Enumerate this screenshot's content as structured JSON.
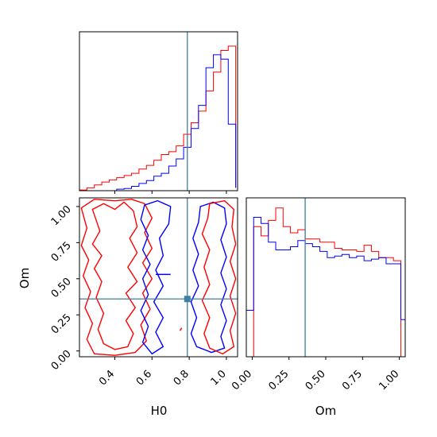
{
  "chart_data": {
    "type": "corner",
    "parameters": [
      "H0",
      "Om"
    ],
    "colors": {
      "red": "#ff0000",
      "blue": "#0000ff",
      "truth": "#3f7fa0"
    },
    "truth": {
      "H0": 0.79,
      "Om": 0.36
    },
    "panels": {
      "h0_hist": {
        "type": "step-histogram",
        "xlim": [
          0.21,
          1.06
        ],
        "x_ticks": [
          0.4,
          0.6,
          0.8,
          1.0
        ],
        "bin_edges": [
          0.21,
          0.25,
          0.29,
          0.33,
          0.37,
          0.41,
          0.45,
          0.49,
          0.53,
          0.57,
          0.61,
          0.65,
          0.69,
          0.73,
          0.77,
          0.81,
          0.85,
          0.89,
          0.93,
          0.97,
          1.01,
          1.05
        ],
        "series": [
          {
            "color": "red",
            "counts": [
              0.005,
              0.02,
              0.04,
              0.06,
              0.075,
              0.09,
              0.105,
              0.12,
              0.15,
              0.175,
              0.21,
              0.25,
              0.27,
              0.31,
              0.39,
              0.47,
              0.55,
              0.69,
              0.82,
              0.97,
              1.0,
              0.02
            ]
          },
          {
            "color": "blue",
            "counts": [
              0.0,
              0.0,
              0.0,
              0.0,
              0.0,
              0.01,
              0.015,
              0.03,
              0.05,
              0.07,
              0.1,
              0.12,
              0.17,
              0.22,
              0.3,
              0.43,
              0.59,
              0.85,
              0.94,
              0.91,
              0.46,
              0.02
            ]
          }
        ]
      },
      "contour": {
        "type": "contour",
        "xlabel": "H0",
        "ylabel": "Om",
        "xlim": [
          0.21,
          1.06
        ],
        "ylim": [
          -0.04,
          1.06
        ],
        "x_ticks": [
          0.4,
          0.6,
          0.8,
          1.0
        ],
        "y_ticks": [
          0.0,
          0.25,
          0.5,
          0.75,
          1.0
        ],
        "contours": [
          {
            "color": "red",
            "points": [
              [
                0.28,
                0.98
              ],
              [
                0.34,
                1.02
              ],
              [
                0.4,
                0.98
              ],
              [
                0.45,
                1.03
              ],
              [
                0.5,
                0.97
              ],
              [
                0.52,
                0.86
              ],
              [
                0.48,
                0.78
              ],
              [
                0.52,
                0.68
              ],
              [
                0.47,
                0.58
              ],
              [
                0.52,
                0.48
              ],
              [
                0.46,
                0.4
              ],
              [
                0.51,
                0.3
              ],
              [
                0.46,
                0.21
              ],
              [
                0.5,
                0.12
              ],
              [
                0.47,
                0.03
              ],
              [
                0.4,
                0.01
              ],
              [
                0.34,
                0.05
              ],
              [
                0.31,
                0.15
              ],
              [
                0.34,
                0.26
              ],
              [
                0.3,
                0.37
              ],
              [
                0.33,
                0.48
              ],
              [
                0.29,
                0.57
              ],
              [
                0.33,
                0.66
              ],
              [
                0.28,
                0.74
              ],
              [
                0.32,
                0.83
              ]
            ]
          },
          {
            "color": "red",
            "points": [
              [
                0.22,
                0.99
              ],
              [
                0.29,
                1.05
              ],
              [
                0.4,
                1.04
              ],
              [
                0.49,
                1.05
              ],
              [
                0.56,
                1.02
              ],
              [
                0.6,
                0.92
              ],
              [
                0.56,
                0.82
              ],
              [
                0.6,
                0.71
              ],
              [
                0.55,
                0.61
              ],
              [
                0.6,
                0.5
              ],
              [
                0.55,
                0.4
              ],
              [
                0.59,
                0.29
              ],
              [
                0.54,
                0.18
              ],
              [
                0.57,
                0.07
              ],
              [
                0.51,
                -0.01
              ],
              [
                0.4,
                -0.03
              ],
              [
                0.29,
                -0.02
              ],
              [
                0.25,
                0.08
              ],
              [
                0.28,
                0.19
              ],
              [
                0.24,
                0.3
              ],
              [
                0.27,
                0.41
              ],
              [
                0.23,
                0.52
              ],
              [
                0.26,
                0.63
              ],
              [
                0.22,
                0.73
              ],
              [
                0.25,
                0.85
              ]
            ]
          },
          {
            "color": "blue",
            "points": [
              [
                0.56,
                1.01
              ],
              [
                0.63,
                1.04
              ],
              [
                0.7,
                1.0
              ],
              [
                0.69,
                0.88
              ],
              [
                0.64,
                0.78
              ],
              [
                0.66,
                0.66
              ],
              [
                0.62,
                0.56
              ],
              [
                0.66,
                0.45
              ],
              [
                0.61,
                0.34
              ],
              [
                0.66,
                0.23
              ],
              [
                0.62,
                0.13
              ],
              [
                0.66,
                0.03
              ],
              [
                0.6,
                -0.02
              ],
              [
                0.55,
                0.06
              ],
              [
                0.58,
                0.17
              ],
              [
                0.54,
                0.28
              ],
              [
                0.58,
                0.39
              ],
              [
                0.55,
                0.5
              ],
              [
                0.59,
                0.6
              ],
              [
                0.55,
                0.7
              ],
              [
                0.58,
                0.8
              ],
              [
                0.54,
                0.91
              ]
            ]
          },
          {
            "color": "blue",
            "points": [
              [
                0.86,
                1.0
              ],
              [
                0.93,
                1.03
              ],
              [
                0.99,
                0.99
              ],
              [
                1.0,
                0.88
              ],
              [
                0.97,
                0.77
              ],
              [
                1.0,
                0.65
              ],
              [
                0.97,
                0.54
              ],
              [
                1.0,
                0.43
              ],
              [
                0.97,
                0.32
              ],
              [
                1.0,
                0.21
              ],
              [
                0.97,
                0.1
              ],
              [
                0.99,
                0.02
              ],
              [
                0.92,
                -0.01
              ],
              [
                0.84,
                0.03
              ],
              [
                0.81,
                0.12
              ],
              [
                0.84,
                0.23
              ],
              [
                0.81,
                0.34
              ],
              [
                0.85,
                0.45
              ],
              [
                0.82,
                0.56
              ],
              [
                0.85,
                0.67
              ],
              [
                0.82,
                0.78
              ],
              [
                0.85,
                0.89
              ]
            ]
          },
          {
            "color": "red",
            "points": [
              [
                0.91,
                1.02
              ],
              [
                0.99,
                1.04
              ],
              [
                1.04,
                0.98
              ],
              [
                1.03,
                0.86
              ],
              [
                1.05,
                0.74
              ],
              [
                1.02,
                0.62
              ],
              [
                1.05,
                0.5
              ],
              [
                1.02,
                0.38
              ],
              [
                1.05,
                0.26
              ],
              [
                1.02,
                0.14
              ],
              [
                1.04,
                0.03
              ],
              [
                0.98,
                -0.02
              ],
              [
                0.91,
                0.02
              ],
              [
                0.88,
                0.12
              ],
              [
                0.91,
                0.23
              ],
              [
                0.87,
                0.35
              ],
              [
                0.91,
                0.46
              ],
              [
                0.88,
                0.58
              ],
              [
                0.91,
                0.7
              ],
              [
                0.87,
                0.81
              ],
              [
                0.9,
                0.92
              ]
            ]
          },
          {
            "color": "blue",
            "points": [
              [
                0.62,
                0.53
              ],
              [
                0.7,
                0.53
              ]
            ]
          },
          {
            "color": "red",
            "points": [
              [
                0.75,
                0.14
              ],
              [
                0.76,
                0.16
              ]
            ]
          }
        ]
      },
      "om_hist": {
        "type": "step-histogram",
        "xlim": [
          -0.04,
          1.04
        ],
        "x_ticks": [
          0.0,
          0.25,
          0.5,
          0.75,
          1.0
        ],
        "bin_edges": [
          -0.04,
          0.01,
          0.06,
          0.11,
          0.16,
          0.21,
          0.26,
          0.31,
          0.36,
          0.41,
          0.46,
          0.51,
          0.56,
          0.61,
          0.66,
          0.71,
          0.76,
          0.81,
          0.86,
          0.91,
          0.96,
          1.01,
          1.04
        ],
        "series": [
          {
            "color": "red",
            "counts": [
              0.0,
              0.84,
              0.78,
              0.88,
              0.96,
              0.84,
              0.8,
              0.82,
              0.76,
              0.76,
              0.74,
              0.74,
              0.7,
              0.69,
              0.69,
              0.68,
              0.72,
              0.68,
              0.64,
              0.64,
              0.62,
              0.0
            ]
          },
          {
            "color": "blue",
            "counts": [
              0.3,
              0.9,
              0.86,
              0.74,
              0.69,
              0.69,
              0.71,
              0.75,
              0.73,
              0.71,
              0.68,
              0.64,
              0.65,
              0.66,
              0.64,
              0.65,
              0.62,
              0.63,
              0.64,
              0.6,
              0.6,
              0.24
            ]
          }
        ]
      }
    }
  }
}
